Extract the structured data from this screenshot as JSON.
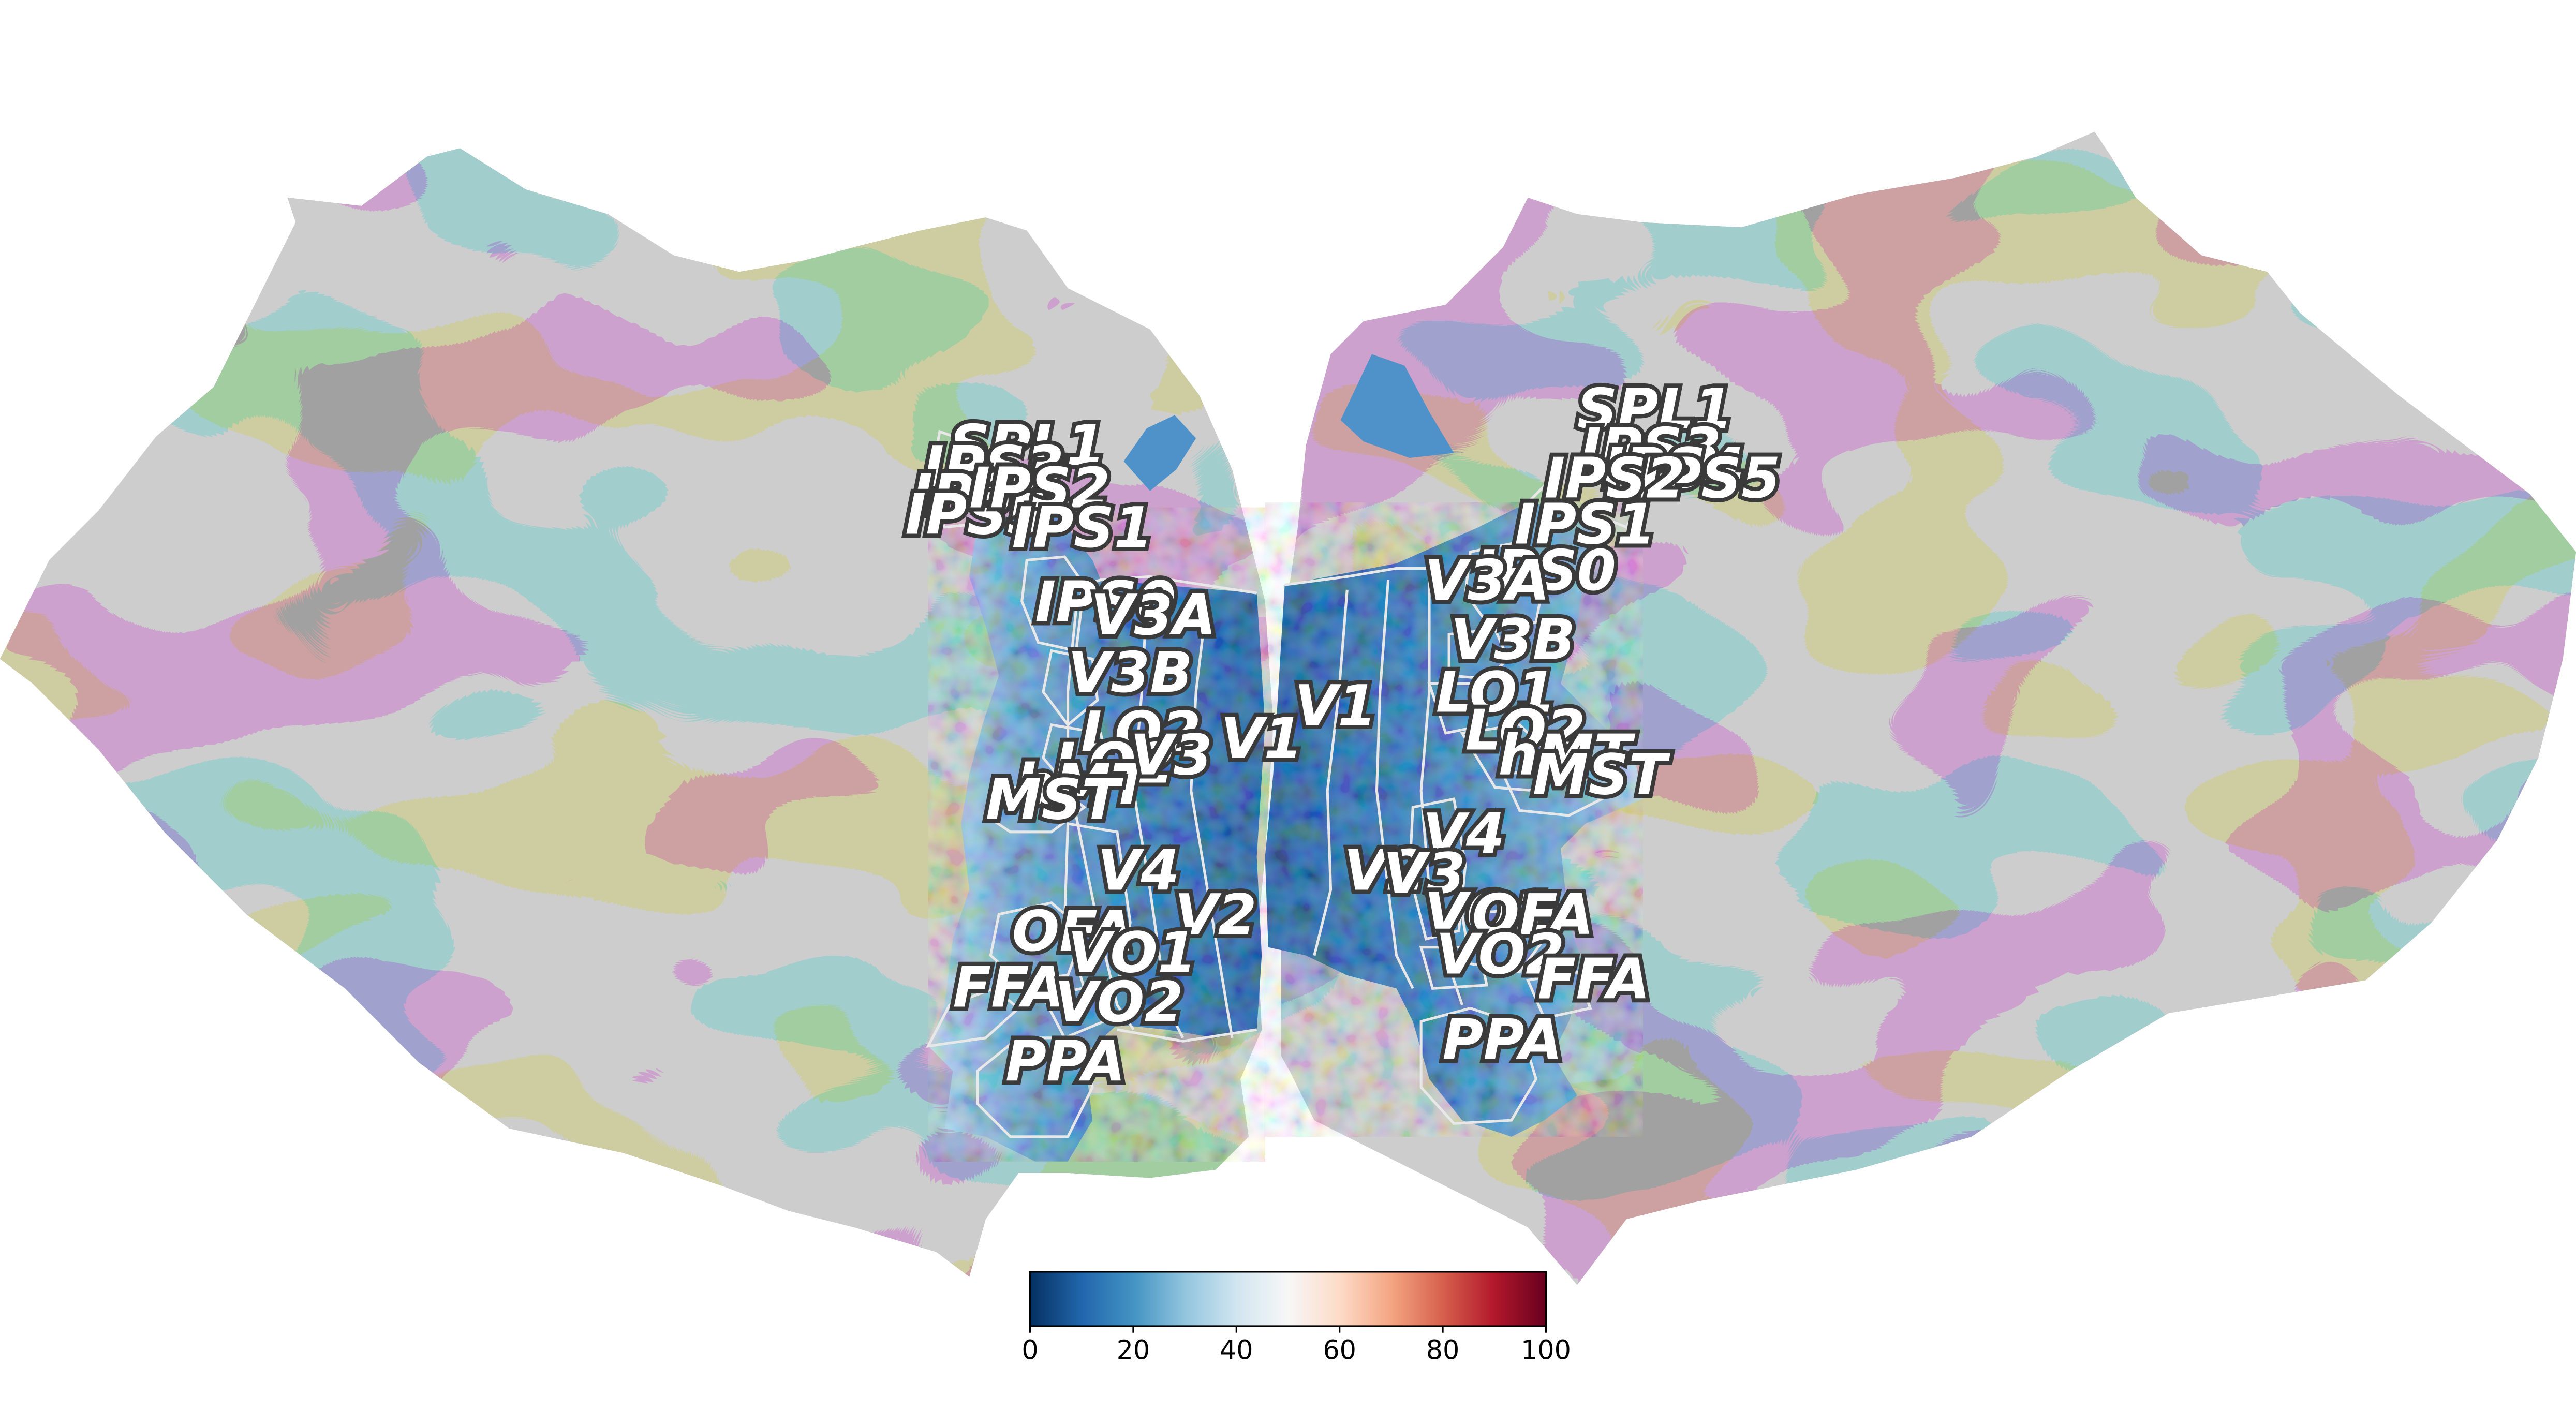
{
  "colors": {
    "background": "#ffffff",
    "cortex_light": "#9c9c9c",
    "cortex_dark": "#5c5c5c",
    "roi_outline": "#e8e8e8",
    "colormap": [
      "#053061",
      "#2166ac",
      "#4393c3",
      "#92c5de",
      "#d1e5f0",
      "#f7f7f7",
      "#fddbc7",
      "#f4a582",
      "#d6604d",
      "#b2182b",
      "#67001f"
    ]
  },
  "colorbar": {
    "range": [
      0,
      100
    ],
    "ticks": [
      "0",
      "20",
      "40",
      "60",
      "80",
      "100"
    ],
    "colormap_name": "RdBu_r"
  },
  "left_hemisphere": {
    "roi_labels": [
      "SPL1",
      "IPS3",
      "IPS4",
      "IPS5",
      "IPS2",
      "IPS1",
      "IPS0",
      "V3A",
      "V3B",
      "LO2",
      "LO2",
      "hMT",
      "MST",
      "V3",
      "V1",
      "V4",
      "V2",
      "OFA",
      "VO1",
      "FFA",
      "VO2",
      "PPA"
    ]
  },
  "right_hemisphere": {
    "roi_labels": [
      "SPL1",
      "IPS3",
      "IPS4",
      "IPS5",
      "IPS2",
      "IPS1",
      "IPS0",
      "V3A",
      "V3B",
      "LO1",
      "LO2",
      "hMT",
      "MST",
      "V1",
      "V4",
      "V2",
      "V3",
      "VO1",
      "OFA",
      "VO2",
      "FFA",
      "PPA"
    ]
  }
}
